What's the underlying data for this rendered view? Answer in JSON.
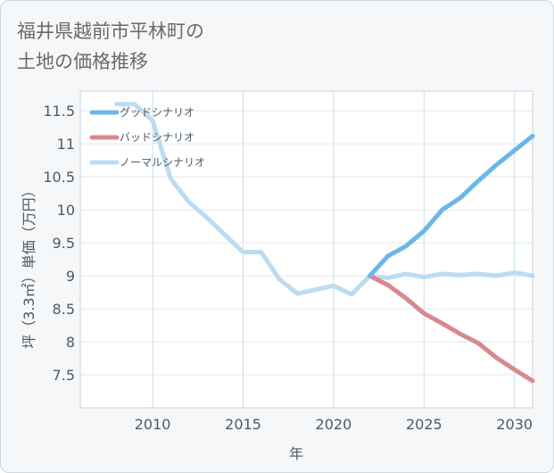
{
  "title_lines": [
    "福井県越前市平林町の",
    "土地の価格推移"
  ],
  "chart_data": {
    "type": "line",
    "xlabel": "年",
    "ylabel": "坪（3.3㎡）単価（万円）",
    "xlim": [
      2006,
      2031
    ],
    "ylim": [
      7.0,
      11.8
    ],
    "xticks": [
      2010,
      2015,
      2020,
      2025,
      2030
    ],
    "yticks": [
      7.5,
      8,
      8.5,
      9,
      9.5,
      10,
      10.5,
      11,
      11.5
    ],
    "ytick_labels": [
      "7.5",
      "8",
      "8.5",
      "9",
      "9.5",
      "10",
      "10.5",
      "11",
      "11.5"
    ],
    "grid": true,
    "legend_position": "top-left",
    "series": [
      {
        "name": "グッドシナリオ",
        "color": "#6cb7e8",
        "x": [
          2022,
          2023,
          2024,
          2025,
          2026,
          2027,
          2028,
          2029,
          2030,
          2031
        ],
        "y": [
          9.0,
          9.3,
          9.45,
          9.68,
          10.0,
          10.18,
          10.44,
          10.68,
          10.9,
          11.12
        ]
      },
      {
        "name": "バッドシナリオ",
        "color": "#d98790",
        "x": [
          2022,
          2023,
          2024,
          2025,
          2026,
          2027,
          2028,
          2029,
          2030,
          2031
        ],
        "y": [
          9.0,
          8.86,
          8.66,
          8.43,
          8.28,
          8.12,
          7.98,
          7.76,
          7.58,
          7.41
        ]
      },
      {
        "name": "ノーマルシナリオ",
        "color": "#bcdcf0",
        "x": [
          2008,
          2009,
          2010,
          2011,
          2012,
          2013,
          2014,
          2015,
          2016,
          2017,
          2018,
          2019,
          2020,
          2021,
          2022,
          2023,
          2024,
          2025,
          2026,
          2027,
          2028,
          2029,
          2030,
          2031
        ],
        "y": [
          11.6,
          11.6,
          11.35,
          10.47,
          10.12,
          9.88,
          9.62,
          9.36,
          9.36,
          8.95,
          8.73,
          8.79,
          8.85,
          8.72,
          9.0,
          8.97,
          9.03,
          8.98,
          9.03,
          9.01,
          9.03,
          9.0,
          9.05,
          9.0
        ]
      }
    ]
  }
}
